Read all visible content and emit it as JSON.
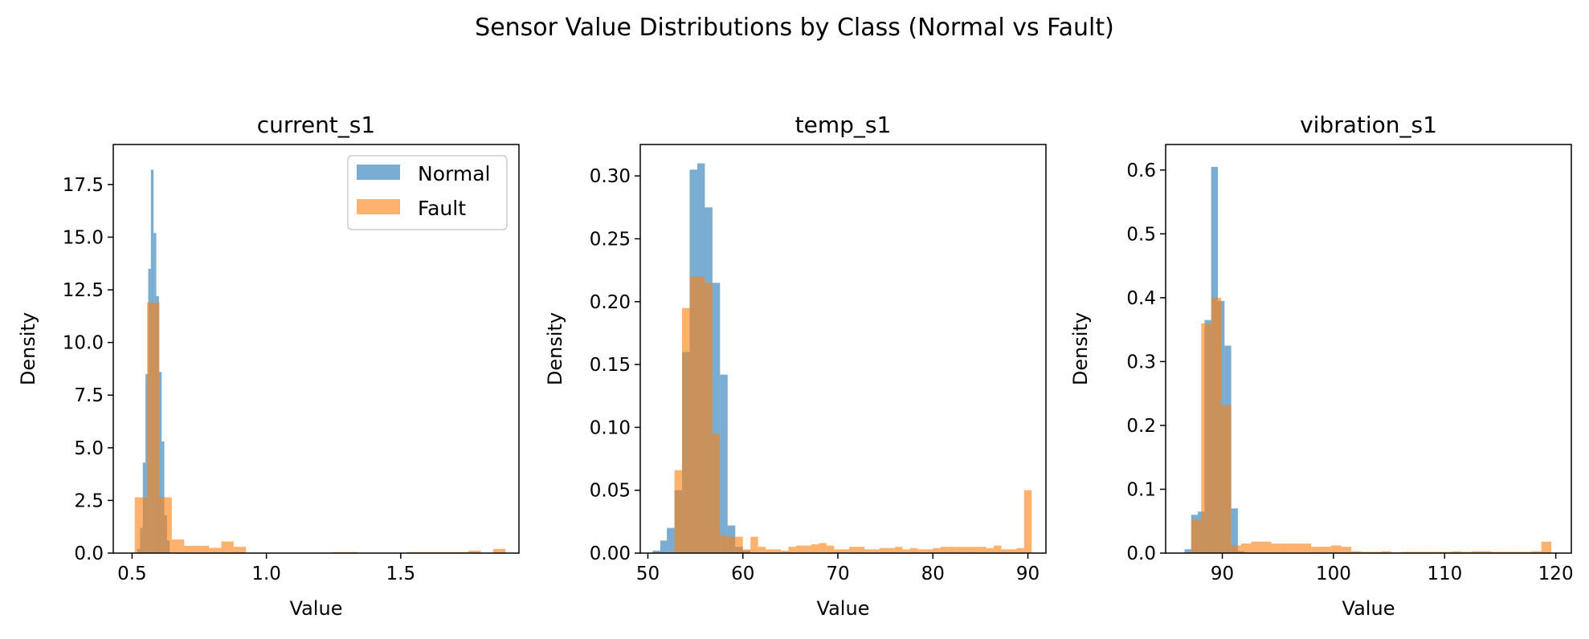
{
  "figure": {
    "title": "Sensor Value Distributions by Class (Normal vs Fault)"
  },
  "colors": {
    "normal": "#1f77b4",
    "fault": "#ff7f0e"
  },
  "legend": {
    "placement": "upper-right of first panel",
    "entries": [
      "Normal",
      "Fault"
    ]
  },
  "chart_data": [
    {
      "type": "histogram",
      "title": "current_s1",
      "xlabel": "Value",
      "ylabel": "Density",
      "xlim": [
        0.43,
        1.94
      ],
      "ylim": [
        0,
        19.4
      ],
      "xticks": [
        0.5,
        1.0,
        1.5
      ],
      "xtick_labels": [
        "0.5",
        "1.0",
        "1.5"
      ],
      "yticks": [
        0,
        2.5,
        5.0,
        7.5,
        10.0,
        12.5,
        15.0,
        17.5
      ],
      "ytick_labels": [
        "0.0",
        "2.5",
        "5.0",
        "7.5",
        "10.0",
        "12.5",
        "15.0",
        "17.5"
      ],
      "series": [
        {
          "name": "Normal",
          "bins": [
            [
              0.52,
              0.53,
              0.2
            ],
            [
              0.53,
              0.54,
              1.2
            ],
            [
              0.54,
              0.55,
              4.3
            ],
            [
              0.55,
              0.56,
              8.5
            ],
            [
              0.56,
              0.57,
              13.5
            ],
            [
              0.57,
              0.58,
              18.2
            ],
            [
              0.58,
              0.59,
              15.2
            ],
            [
              0.59,
              0.6,
              12.2
            ],
            [
              0.6,
              0.61,
              8.6
            ],
            [
              0.61,
              0.62,
              5.3
            ],
            [
              0.62,
              0.63,
              1.8
            ],
            [
              0.63,
              0.64,
              0.6
            ]
          ]
        },
        {
          "name": "Fault",
          "bins": [
            [
              0.51,
              0.556,
              2.65
            ],
            [
              0.556,
              0.602,
              11.9
            ],
            [
              0.602,
              0.648,
              2.65
            ],
            [
              0.648,
              0.694,
              0.65
            ],
            [
              0.694,
              0.74,
              0.35
            ],
            [
              0.74,
              0.786,
              0.35
            ],
            [
              0.786,
              0.832,
              0.25
            ],
            [
              0.832,
              0.878,
              0.55
            ],
            [
              0.878,
              0.924,
              0.3
            ],
            [
              1.247,
              1.339,
              0.05
            ],
            [
              1.522,
              1.752,
              0.05
            ],
            [
              1.752,
              1.798,
              0.12
            ],
            [
              1.844,
              1.89,
              0.2
            ]
          ]
        }
      ]
    },
    {
      "type": "histogram",
      "title": "temp_s1",
      "xlabel": "Value",
      "ylabel": "Density",
      "xlim": [
        49.2,
        91.9
      ],
      "ylim": [
        0,
        0.325
      ],
      "xticks": [
        50,
        60,
        70,
        80,
        90
      ],
      "xtick_labels": [
        "50",
        "60",
        "70",
        "80",
        "90"
      ],
      "yticks": [
        0,
        0.05,
        0.1,
        0.15,
        0.2,
        0.25,
        0.3
      ],
      "ytick_labels": [
        "0.00",
        "0.05",
        "0.10",
        "0.15",
        "0.20",
        "0.25",
        "0.30"
      ],
      "series": [
        {
          "name": "Normal",
          "bins": [
            [
              50.5,
              51.3,
              0.002
            ],
            [
              51.3,
              52.0,
              0.01
            ],
            [
              52.0,
              52.8,
              0.02
            ],
            [
              52.8,
              53.6,
              0.05
            ],
            [
              53.6,
              54.4,
              0.16
            ],
            [
              54.4,
              55.2,
              0.305
            ],
            [
              55.2,
              56.0,
              0.31
            ],
            [
              56.0,
              56.8,
              0.275
            ],
            [
              56.8,
              57.6,
              0.215
            ],
            [
              57.6,
              58.4,
              0.142
            ],
            [
              58.4,
              59.2,
              0.022
            ],
            [
              59.2,
              60.0,
              0.005
            ],
            [
              60.0,
              60.8,
              0.002
            ]
          ]
        },
        {
          "name": "Fault",
          "bins": [
            [
              52.8,
              53.6,
              0.066
            ],
            [
              53.6,
              54.4,
              0.195
            ],
            [
              54.4,
              55.2,
              0.22
            ],
            [
              55.2,
              56.0,
              0.22
            ],
            [
              56.0,
              56.8,
              0.215
            ],
            [
              56.8,
              57.6,
              0.095
            ],
            [
              57.6,
              58.4,
              0.014
            ],
            [
              58.4,
              59.2,
              0.013
            ],
            [
              59.2,
              60.0,
              0.013
            ],
            [
              60.0,
              60.8,
              0.003
            ],
            [
              60.8,
              61.6,
              0.013
            ],
            [
              61.6,
              62.4,
              0.005
            ],
            [
              62.4,
              63.2,
              0.003
            ],
            [
              63.2,
              64.0,
              0.003
            ],
            [
              64.0,
              64.8,
              0.002
            ],
            [
              64.8,
              65.6,
              0.005
            ],
            [
              65.6,
              66.4,
              0.006
            ],
            [
              66.4,
              67.2,
              0.006
            ],
            [
              67.2,
              68.0,
              0.007
            ],
            [
              68.0,
              68.8,
              0.008
            ],
            [
              68.8,
              69.6,
              0.006
            ],
            [
              69.6,
              70.4,
              0.003
            ],
            [
              70.4,
              71.2,
              0.003
            ],
            [
              71.2,
              72.0,
              0.005
            ],
            [
              72.0,
              72.8,
              0.005
            ],
            [
              72.8,
              73.6,
              0.003
            ],
            [
              73.6,
              74.4,
              0.003
            ],
            [
              74.4,
              75.2,
              0.004
            ],
            [
              75.2,
              76.0,
              0.004
            ],
            [
              76.0,
              76.8,
              0.005
            ],
            [
              76.8,
              77.6,
              0.003
            ],
            [
              77.6,
              78.4,
              0.004
            ],
            [
              78.4,
              79.2,
              0.003
            ],
            [
              79.2,
              80.0,
              0.003
            ],
            [
              80.0,
              80.8,
              0.004
            ],
            [
              80.8,
              81.6,
              0.005
            ],
            [
              81.6,
              82.4,
              0.005
            ],
            [
              82.4,
              83.2,
              0.005
            ],
            [
              83.2,
              84.0,
              0.005
            ],
            [
              84.0,
              84.8,
              0.005
            ],
            [
              84.8,
              85.6,
              0.005
            ],
            [
              85.6,
              86.4,
              0.004
            ],
            [
              86.4,
              87.2,
              0.006
            ],
            [
              87.2,
              88.0,
              0.003
            ],
            [
              88.0,
              88.8,
              0.003
            ],
            [
              88.8,
              89.6,
              0.004
            ],
            [
              89.6,
              90.4,
              0.05
            ]
          ]
        }
      ]
    },
    {
      "type": "histogram",
      "title": "vibration_s1",
      "xlabel": "Value",
      "ylabel": "Density",
      "xlim": [
        84.9,
        121.4
      ],
      "ylim": [
        0,
        0.64
      ],
      "xticks": [
        90,
        100,
        110,
        120
      ],
      "xtick_labels": [
        "90",
        "100",
        "110",
        "120"
      ],
      "yticks": [
        0,
        0.1,
        0.2,
        0.3,
        0.4,
        0.5,
        0.6
      ],
      "ytick_labels": [
        "0.0",
        "0.1",
        "0.2",
        "0.3",
        "0.4",
        "0.5",
        "0.6"
      ],
      "series": [
        {
          "name": "Normal",
          "bins": [
            [
              86.6,
              87.2,
              0.006
            ],
            [
              87.2,
              87.8,
              0.06
            ],
            [
              87.8,
              88.4,
              0.065
            ],
            [
              88.4,
              89.0,
              0.365
            ],
            [
              89.0,
              89.6,
              0.605
            ],
            [
              89.6,
              90.2,
              0.395
            ],
            [
              90.2,
              90.8,
              0.325
            ],
            [
              90.8,
              91.4,
              0.07
            ],
            [
              91.4,
              92.0,
              0.003
            ]
          ]
        },
        {
          "name": "Fault",
          "bins": [
            [
              87.2,
              88.1,
              0.052
            ],
            [
              88.1,
              89.0,
              0.36
            ],
            [
              89.0,
              89.9,
              0.4
            ],
            [
              89.9,
              90.8,
              0.232
            ],
            [
              90.8,
              91.7,
              0.012
            ],
            [
              91.7,
              92.6,
              0.015
            ],
            [
              92.6,
              93.5,
              0.018
            ],
            [
              93.5,
              94.4,
              0.018
            ],
            [
              94.4,
              95.3,
              0.015
            ],
            [
              95.3,
              96.2,
              0.015
            ],
            [
              96.2,
              97.1,
              0.015
            ],
            [
              97.1,
              98.0,
              0.015
            ],
            [
              98.0,
              98.9,
              0.01
            ],
            [
              98.9,
              99.8,
              0.01
            ],
            [
              99.8,
              100.7,
              0.012
            ],
            [
              100.7,
              101.6,
              0.01
            ],
            [
              101.6,
              102.5,
              0.003
            ],
            [
              102.5,
              103.4,
              0.002
            ],
            [
              103.4,
              104.3,
              0.002
            ],
            [
              104.3,
              105.2,
              0.003
            ],
            [
              105.2,
              106.1,
              0.001
            ],
            [
              106.1,
              107.0,
              0.002
            ],
            [
              107.0,
              107.9,
              0.002
            ],
            [
              107.9,
              108.8,
              0.002
            ],
            [
              108.8,
              109.7,
              0.002
            ],
            [
              109.7,
              110.6,
              0.002
            ],
            [
              110.6,
              111.5,
              0.003
            ],
            [
              111.5,
              112.4,
              0.002
            ],
            [
              112.4,
              113.3,
              0.003
            ],
            [
              113.3,
              114.2,
              0.003
            ],
            [
              114.2,
              115.1,
              0.002
            ],
            [
              115.1,
              116.0,
              0.002
            ],
            [
              116.0,
              116.9,
              0.002
            ],
            [
              116.9,
              117.8,
              0.002
            ],
            [
              117.8,
              118.7,
              0.003
            ],
            [
              118.7,
              119.6,
              0.018
            ]
          ]
        }
      ]
    }
  ]
}
